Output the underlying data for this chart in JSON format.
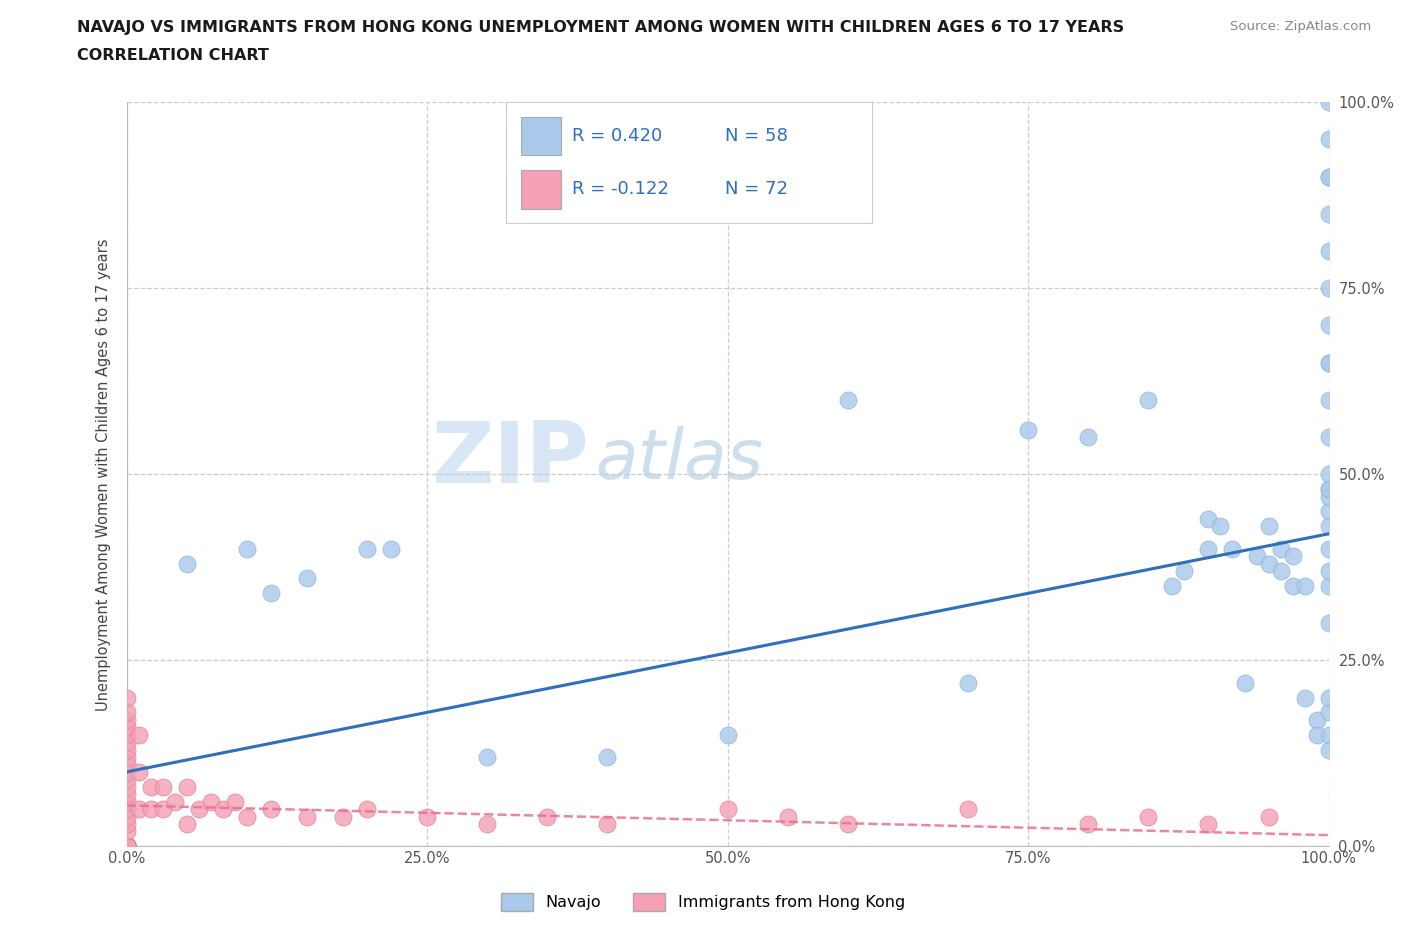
{
  "title_line1": "NAVAJO VS IMMIGRANTS FROM HONG KONG UNEMPLOYMENT AMONG WOMEN WITH CHILDREN AGES 6 TO 17 YEARS",
  "title_line2": "CORRELATION CHART",
  "source": "Source: ZipAtlas.com",
  "ylabel": "Unemployment Among Women with Children Ages 6 to 17 years",
  "watermark_zip": "ZIP",
  "watermark_atlas": "atlas",
  "legend_navajo_R": "0.420",
  "legend_navajo_N": "58",
  "legend_hk_R": "-0.122",
  "legend_hk_N": "72",
  "navajo_color": "#aac9eb",
  "hk_color": "#f5a0b5",
  "trend_navajo_color": "#2e6fbe",
  "trend_hk_color": "#e87090",
  "background_color": "#ffffff",
  "grid_color": "#c8c8c8",
  "navajo_x": [
    5,
    10,
    12,
    15,
    20,
    22,
    30,
    40,
    50,
    60,
    70,
    75,
    80,
    85,
    87,
    88,
    90,
    90,
    91,
    92,
    93,
    94,
    95,
    95,
    96,
    96,
    97,
    97,
    98,
    98,
    99,
    99,
    100,
    100,
    100,
    100,
    100,
    100,
    100,
    100,
    100,
    100,
    100,
    100,
    100,
    100,
    100,
    100,
    100,
    100,
    100,
    100,
    100,
    100,
    100,
    100,
    100,
    100
  ],
  "navajo_y": [
    38,
    40,
    34,
    36,
    40,
    40,
    12,
    12,
    15,
    60,
    22,
    56,
    55,
    60,
    35,
    37,
    40,
    44,
    43,
    40,
    22,
    39,
    43,
    38,
    40,
    37,
    35,
    39,
    35,
    20,
    17,
    15,
    13,
    15,
    18,
    20,
    30,
    35,
    37,
    40,
    43,
    45,
    47,
    48,
    50,
    55,
    60,
    65,
    70,
    75,
    80,
    85,
    90,
    95,
    100,
    65,
    90,
    48
  ],
  "hk_x": [
    0,
    0,
    0,
    0,
    0,
    0,
    0,
    0,
    0,
    0,
    0,
    0,
    0,
    0,
    0,
    0,
    0,
    0,
    0,
    0,
    0,
    0,
    0,
    0,
    0,
    0,
    0,
    0,
    0,
    0,
    0,
    0,
    0,
    0,
    0,
    0,
    0,
    0,
    0,
    0,
    0,
    1,
    1,
    1,
    2,
    2,
    3,
    3,
    4,
    5,
    5,
    6,
    7,
    8,
    9,
    10,
    12,
    15,
    18,
    20,
    25,
    30,
    35,
    40,
    50,
    55,
    60,
    70,
    80,
    85,
    90,
    95
  ],
  "hk_y": [
    0,
    0,
    0,
    0,
    0,
    0,
    0,
    0,
    0,
    0,
    0,
    0,
    0,
    0,
    0,
    0,
    0,
    0,
    0,
    0,
    0,
    0,
    0,
    2,
    3,
    4,
    5,
    6,
    7,
    8,
    9,
    10,
    11,
    12,
    13,
    14,
    15,
    16,
    17,
    18,
    20,
    5,
    10,
    15,
    5,
    8,
    5,
    8,
    6,
    3,
    8,
    5,
    6,
    5,
    6,
    4,
    5,
    4,
    4,
    5,
    4,
    3,
    4,
    3,
    5,
    4,
    3,
    5,
    3,
    4,
    3,
    4
  ]
}
